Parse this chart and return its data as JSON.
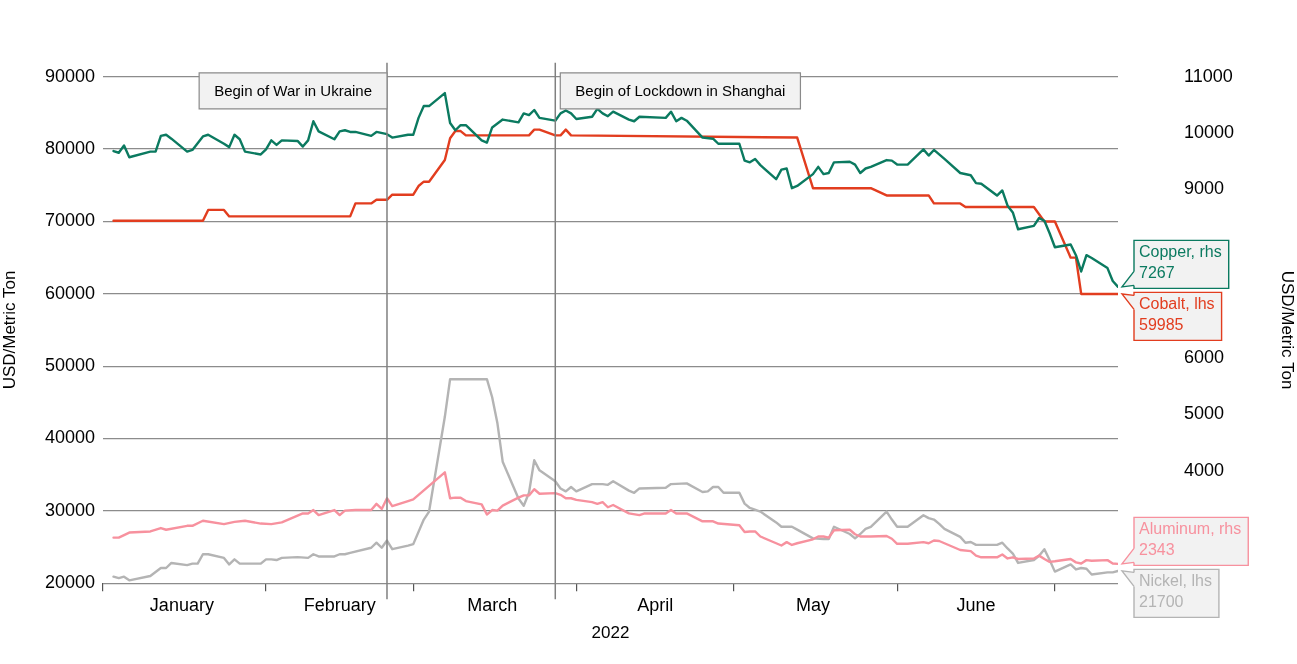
{
  "chart_data": {
    "type": "line",
    "xlabel": "2022",
    "ylabel": "USD/Metric Ton",
    "y2label": "USD/Metric Ton",
    "grid": "y",
    "xlim": [
      "2022-01-01",
      "2022-07-13"
    ],
    "xticks": [
      {
        "value": "2022-01-01",
        "label": null
      },
      {
        "value": "2022-01-16",
        "label": "January"
      },
      {
        "value": "2022-02-01",
        "label": null
      },
      {
        "value": "2022-02-15",
        "label": "February"
      },
      {
        "value": "2022-03-01",
        "label": null
      },
      {
        "value": "2022-03-16",
        "label": "March"
      },
      {
        "value": "2022-04-01",
        "label": null
      },
      {
        "value": "2022-04-16",
        "label": "April"
      },
      {
        "value": "2022-05-01",
        "label": null
      },
      {
        "value": "2022-05-16",
        "label": "May"
      },
      {
        "value": "2022-06-01",
        "label": null
      },
      {
        "value": "2022-06-16",
        "label": "June"
      },
      {
        "value": "2022-07-01",
        "label": null
      }
    ],
    "ylim": [
      20000,
      90000
    ],
    "yticks": [
      20000,
      30000,
      40000,
      50000,
      60000,
      70000,
      80000,
      90000
    ],
    "y2lim": [
      2000,
      11000
    ],
    "y2ticks": [
      4000,
      5000,
      6000,
      9000,
      10000,
      11000
    ],
    "legend": "right",
    "ref_lines": [
      {
        "axis": "x",
        "value": "2022-02-24",
        "label": "Begin of War in Ukraine",
        "color": "#808080"
      },
      {
        "axis": "x",
        "value": "2022-03-28",
        "label": "Begin of Lockdown in Shanghai",
        "color": "#808080"
      }
    ],
    "series": [
      {
        "name": "Copper, rhs",
        "color": "#0b7a60",
        "axis": "y2",
        "x": [
          "2022-01-03",
          "2022-01-04",
          "2022-01-05",
          "2022-01-06",
          "2022-01-10",
          "2022-01-11",
          "2022-01-12",
          "2022-01-13",
          "2022-01-14",
          "2022-01-17",
          "2022-01-18",
          "2022-01-20",
          "2022-01-21",
          "2022-01-24",
          "2022-01-25",
          "2022-01-26",
          "2022-01-27",
          "2022-01-28",
          "2022-01-31",
          "2022-02-01",
          "2022-02-02",
          "2022-02-03",
          "2022-02-04",
          "2022-02-07",
          "2022-02-08",
          "2022-02-09",
          "2022-02-10",
          "2022-02-11",
          "2022-02-14",
          "2022-02-15",
          "2022-02-16",
          "2022-02-17",
          "2022-02-18",
          "2022-02-21",
          "2022-02-22",
          "2022-02-24",
          "2022-02-25",
          "2022-02-28",
          "2022-03-01",
          "2022-03-02",
          "2022-03-03",
          "2022-03-04",
          "2022-03-07",
          "2022-03-08",
          "2022-03-09",
          "2022-03-10",
          "2022-03-11",
          "2022-03-14",
          "2022-03-15",
          "2022-03-16",
          "2022-03-18",
          "2022-03-21",
          "2022-03-22",
          "2022-03-23",
          "2022-03-24",
          "2022-03-25",
          "2022-03-28",
          "2022-03-29",
          "2022-03-30",
          "2022-03-31",
          "2022-04-01",
          "2022-04-04",
          "2022-04-05",
          "2022-04-06",
          "2022-04-07",
          "2022-04-08",
          "2022-04-11",
          "2022-04-12",
          "2022-04-13",
          "2022-04-18",
          "2022-04-19",
          "2022-04-20",
          "2022-04-21",
          "2022-04-22",
          "2022-04-25",
          "2022-04-27",
          "2022-04-28",
          "2022-05-02",
          "2022-05-03",
          "2022-05-04",
          "2022-05-05",
          "2022-05-06",
          "2022-05-09",
          "2022-05-10",
          "2022-05-11",
          "2022-05-12",
          "2022-05-13",
          "2022-05-16",
          "2022-05-17",
          "2022-05-18",
          "2022-05-19",
          "2022-05-20",
          "2022-05-23",
          "2022-05-24",
          "2022-05-25",
          "2022-05-26",
          "2022-05-27",
          "2022-05-30",
          "2022-05-31",
          "2022-06-01",
          "2022-06-03",
          "2022-06-06",
          "2022-06-07",
          "2022-06-08",
          "2022-06-09",
          "2022-06-10",
          "2022-06-13",
          "2022-06-15",
          "2022-06-16",
          "2022-06-17",
          "2022-06-20",
          "2022-06-21",
          "2022-06-22",
          "2022-06-23",
          "2022-06-24",
          "2022-06-27",
          "2022-06-28",
          "2022-06-29",
          "2022-06-30",
          "2022-07-01",
          "2022-07-04",
          "2022-07-05",
          "2022-07-06",
          "2022-07-07",
          "2022-07-08",
          "2022-07-11",
          "2022-07-12",
          "2022-07-13"
        ],
        "values": [
          9680,
          9650,
          9780,
          9570,
          9670,
          9670,
          9950,
          9970,
          9900,
          9670,
          9700,
          9940,
          9970,
          9810,
          9750,
          9970,
          9890,
          9670,
          9620,
          9710,
          9870,
          9790,
          9870,
          9860,
          9760,
          9870,
          10210,
          10030,
          9890,
          10030,
          10050,
          10020,
          10020,
          9950,
          10020,
          9980,
          9920,
          9970,
          9970,
          10270,
          10480,
          10480,
          10710,
          10180,
          10050,
          10140,
          10140,
          9870,
          9830,
          10100,
          10240,
          10190,
          10350,
          10320,
          10410,
          10270,
          10220,
          10350,
          10400,
          10350,
          10250,
          10290,
          10430,
          10350,
          10300,
          10380,
          10240,
          10210,
          10290,
          10270,
          10380,
          10210,
          10270,
          10220,
          9920,
          9900,
          9810,
          9810,
          9510,
          9480,
          9540,
          9430,
          9180,
          9350,
          9370,
          9020,
          9060,
          9270,
          9400,
          9270,
          9290,
          9480,
          9490,
          9440,
          9290,
          9370,
          9400,
          9520,
          9510,
          9440,
          9440,
          9710,
          9600,
          9700,
          9620,
          9540,
          9290,
          9250,
          9110,
          9100,
          8890,
          8980,
          8710,
          8590,
          8290,
          8350,
          8490,
          8440,
          8220,
          7970,
          8020,
          7830,
          7540,
          7830,
          7780,
          7600,
          7370,
          7267
        ],
        "value_labels": [
          null,
          null,
          null,
          null,
          null,
          null,
          null,
          null,
          null,
          null,
          null,
          null,
          null,
          null,
          null,
          null,
          null,
          null,
          null,
          null,
          null,
          null,
          null,
          null,
          null,
          null,
          null,
          null,
          null,
          null,
          null,
          null,
          null,
          null,
          null,
          null,
          null,
          null,
          null,
          null,
          null,
          null,
          null,
          null,
          null,
          null,
          null,
          null,
          null,
          null,
          null,
          null,
          null,
          null,
          null,
          null,
          null,
          null,
          null,
          null,
          null,
          null,
          null,
          null,
          null,
          null,
          null,
          null,
          null,
          null,
          null,
          null,
          null,
          null,
          null,
          null,
          null,
          null,
          null,
          null,
          null,
          null,
          null,
          null,
          null,
          null,
          null,
          null,
          null,
          null,
          null,
          null,
          null,
          null,
          null,
          null,
          null,
          null,
          null,
          null,
          null,
          null,
          null,
          null,
          null,
          null,
          null,
          null,
          null,
          null,
          null,
          null,
          null,
          null,
          null,
          null,
          null,
          null,
          null,
          null,
          null,
          null,
          null,
          null,
          null,
          null,
          null,
          "7267"
        ]
      },
      {
        "name": "Cobalt, lhs",
        "color": "#e23d1f",
        "x": [
          "2022-01-03",
          "2022-01-20",
          "2022-01-21",
          "2022-01-24",
          "2022-01-25",
          "2022-02-17",
          "2022-02-18",
          "2022-02-21",
          "2022-02-22",
          "2022-02-24",
          "2022-02-25",
          "2022-03-01",
          "2022-03-02",
          "2022-03-03",
          "2022-03-04",
          "2022-03-07",
          "2022-03-08",
          "2022-03-09",
          "2022-03-10",
          "2022-03-11",
          "2022-03-23",
          "2022-03-24",
          "2022-03-25",
          "2022-03-28",
          "2022-03-29",
          "2022-03-30",
          "2022-03-31",
          "2022-05-13",
          "2022-05-16",
          "2022-05-27",
          "2022-05-30",
          "2022-06-07",
          "2022-06-08",
          "2022-06-13",
          "2022-06-14",
          "2022-06-27",
          "2022-06-29",
          "2022-07-01",
          "2022-07-04",
          "2022-07-05",
          "2022-07-06",
          "2022-07-13"
        ],
        "values": [
          70100,
          70100,
          71600,
          71600,
          70700,
          70700,
          72500,
          72500,
          73000,
          73000,
          73700,
          73700,
          74900,
          75500,
          75500,
          78500,
          81500,
          82500,
          82500,
          81900,
          81900,
          82700,
          82700,
          81900,
          81900,
          82700,
          81900,
          81600,
          74600,
          74600,
          73600,
          73600,
          72500,
          72500,
          72000,
          72000,
          70000,
          70000,
          65000,
          65000,
          59985,
          59985
        ],
        "value_labels": [
          null,
          null,
          null,
          null,
          null,
          null,
          null,
          null,
          null,
          null,
          null,
          null,
          null,
          null,
          null,
          null,
          null,
          null,
          null,
          null,
          null,
          null,
          null,
          null,
          null,
          null,
          null,
          null,
          null,
          null,
          null,
          null,
          null,
          null,
          null,
          null,
          null,
          null,
          null,
          null,
          null,
          "59985"
        ]
      },
      {
        "name": "Aluminum, rhs",
        "color": "#f7919e",
        "axis": "y2",
        "x": [
          "2022-01-03",
          "2022-01-04",
          "2022-01-06",
          "2022-01-10",
          "2022-01-12",
          "2022-01-13",
          "2022-01-17",
          "2022-01-18",
          "2022-01-20",
          "2022-01-24",
          "2022-01-26",
          "2022-01-28",
          "2022-01-31",
          "2022-02-02",
          "2022-02-04",
          "2022-02-08",
          "2022-02-09",
          "2022-02-10",
          "2022-02-11",
          "2022-02-14",
          "2022-02-15",
          "2022-02-16",
          "2022-02-18",
          "2022-02-21",
          "2022-02-22",
          "2022-02-23",
          "2022-02-24",
          "2022-02-25",
          "2022-02-28",
          "2022-03-01",
          "2022-03-07",
          "2022-03-08",
          "2022-03-09",
          "2022-03-10",
          "2022-03-11",
          "2022-03-14",
          "2022-03-15",
          "2022-03-16",
          "2022-03-17",
          "2022-03-18",
          "2022-03-21",
          "2022-03-22",
          "2022-03-23",
          "2022-03-24",
          "2022-03-25",
          "2022-03-28",
          "2022-03-29",
          "2022-03-30",
          "2022-03-31",
          "2022-04-01",
          "2022-04-04",
          "2022-04-05",
          "2022-04-06",
          "2022-04-07",
          "2022-04-08",
          "2022-04-11",
          "2022-04-13",
          "2022-04-14",
          "2022-04-18",
          "2022-04-19",
          "2022-04-20",
          "2022-04-22",
          "2022-04-25",
          "2022-04-27",
          "2022-04-28",
          "2022-05-02",
          "2022-05-03",
          "2022-05-04",
          "2022-05-05",
          "2022-05-06",
          "2022-05-09",
          "2022-05-10",
          "2022-05-11",
          "2022-05-12",
          "2022-05-13",
          "2022-05-16",
          "2022-05-17",
          "2022-05-18",
          "2022-05-19",
          "2022-05-20",
          "2022-05-23",
          "2022-05-24",
          "2022-05-25",
          "2022-05-27",
          "2022-05-30",
          "2022-05-31",
          "2022-06-01",
          "2022-06-03",
          "2022-06-06",
          "2022-06-07",
          "2022-06-08",
          "2022-06-09",
          "2022-06-10",
          "2022-06-13",
          "2022-06-15",
          "2022-06-16",
          "2022-06-17",
          "2022-06-20",
          "2022-06-21",
          "2022-06-22",
          "2022-06-23",
          "2022-06-24",
          "2022-06-27",
          "2022-06-28",
          "2022-06-29",
          "2022-06-30",
          "2022-07-01",
          "2022-07-04",
          "2022-07-05",
          "2022-07-06",
          "2022-07-07",
          "2022-07-08",
          "2022-07-11",
          "2022-07-12",
          "2022-07-13"
        ],
        "values": [
          2810,
          2810,
          2900,
          2920,
          2980,
          2950,
          3020,
          3020,
          3110,
          3050,
          3090,
          3110,
          3060,
          3050,
          3080,
          3240,
          3240,
          3300,
          3210,
          3300,
          3210,
          3290,
          3300,
          3300,
          3410,
          3320,
          3510,
          3370,
          3460,
          3490,
          3970,
          3510,
          3520,
          3520,
          3460,
          3400,
          3220,
          3300,
          3290,
          3380,
          3520,
          3560,
          3560,
          3670,
          3590,
          3600,
          3570,
          3510,
          3510,
          3480,
          3440,
          3410,
          3440,
          3350,
          3390,
          3240,
          3210,
          3240,
          3240,
          3300,
          3240,
          3240,
          3100,
          3100,
          3060,
          3030,
          2910,
          2920,
          2920,
          2830,
          2710,
          2670,
          2730,
          2680,
          2710,
          2780,
          2830,
          2830,
          2810,
          2940,
          2950,
          2870,
          2830,
          2830,
          2840,
          2790,
          2700,
          2700,
          2730,
          2710,
          2760,
          2750,
          2710,
          2590,
          2570,
          2490,
          2460,
          2460,
          2510,
          2440,
          2460,
          2430,
          2440,
          2490,
          2430,
          2380,
          2390,
          2430,
          2370,
          2350,
          2410,
          2400,
          2410,
          2350,
          2343
        ],
        "value_labels": [
          null,
          null,
          null,
          null,
          null,
          null,
          null,
          null,
          null,
          null,
          null,
          null,
          null,
          null,
          null,
          null,
          null,
          null,
          null,
          null,
          null,
          null,
          null,
          null,
          null,
          null,
          null,
          null,
          null,
          null,
          null,
          null,
          null,
          null,
          null,
          null,
          null,
          null,
          null,
          null,
          null,
          null,
          null,
          null,
          null,
          null,
          null,
          null,
          null,
          null,
          null,
          null,
          null,
          null,
          null,
          null,
          null,
          null,
          null,
          null,
          null,
          null,
          null,
          null,
          null,
          null,
          null,
          null,
          null,
          null,
          null,
          null,
          null,
          null,
          null,
          null,
          null,
          null,
          null,
          null,
          null,
          null,
          null,
          null,
          null,
          null,
          null,
          null,
          null,
          null,
          null,
          null,
          null,
          null,
          null,
          null,
          null,
          null,
          null,
          null,
          null,
          null,
          null,
          null,
          null,
          null,
          null,
          null,
          null,
          null,
          null,
          null,
          null,
          null,
          "2343"
        ]
      },
      {
        "name": "Nickel, lhs",
        "color": "#b4b4b4",
        "x": [
          "2022-01-03",
          "2022-01-04",
          "2022-01-05",
          "2022-01-06",
          "2022-01-10",
          "2022-01-12",
          "2022-01-13",
          "2022-01-14",
          "2022-01-17",
          "2022-01-18",
          "2022-01-19",
          "2022-01-20",
          "2022-01-21",
          "2022-01-24",
          "2022-01-25",
          "2022-01-26",
          "2022-01-27",
          "2022-01-28",
          "2022-01-31",
          "2022-02-01",
          "2022-02-02",
          "2022-02-03",
          "2022-02-04",
          "2022-02-07",
          "2022-02-09",
          "2022-02-10",
          "2022-02-11",
          "2022-02-14",
          "2022-02-15",
          "2022-02-16",
          "2022-02-17",
          "2022-02-21",
          "2022-02-22",
          "2022-02-23",
          "2022-02-24",
          "2022-02-25",
          "2022-02-28",
          "2022-03-01",
          "2022-03-03",
          "2022-03-04",
          "2022-03-07",
          "2022-03-08",
          "2022-03-15",
          "2022-03-16",
          "2022-03-17",
          "2022-03-18",
          "2022-03-21",
          "2022-03-22",
          "2022-03-23",
          "2022-03-24",
          "2022-03-25",
          "2022-03-28",
          "2022-03-29",
          "2022-03-30",
          "2022-03-31",
          "2022-04-01",
          "2022-04-04",
          "2022-04-06",
          "2022-04-07",
          "2022-04-08",
          "2022-04-11",
          "2022-04-12",
          "2022-04-13",
          "2022-04-18",
          "2022-04-19",
          "2022-04-22",
          "2022-04-25",
          "2022-04-26",
          "2022-04-27",
          "2022-04-28",
          "2022-04-29",
          "2022-05-02",
          "2022-05-03",
          "2022-05-04",
          "2022-05-06",
          "2022-05-09",
          "2022-05-10",
          "2022-05-12",
          "2022-05-13",
          "2022-05-16",
          "2022-05-18",
          "2022-05-19",
          "2022-05-20",
          "2022-05-23",
          "2022-05-24",
          "2022-05-25",
          "2022-05-26",
          "2022-05-27",
          "2022-05-30",
          "2022-05-31",
          "2022-06-01",
          "2022-06-03",
          "2022-06-06",
          "2022-06-07",
          "2022-06-08",
          "2022-06-09",
          "2022-06-10",
          "2022-06-13",
          "2022-06-14",
          "2022-06-15",
          "2022-06-16",
          "2022-06-20",
          "2022-06-21",
          "2022-06-22",
          "2022-06-23",
          "2022-06-24",
          "2022-06-27",
          "2022-06-28",
          "2022-06-29",
          "2022-06-30",
          "2022-07-01",
          "2022-07-04",
          "2022-07-05",
          "2022-07-06",
          "2022-07-07",
          "2022-07-08",
          "2022-07-11",
          "2022-07-12",
          "2022-07-13"
        ],
        "values": [
          20900,
          20700,
          20900,
          20400,
          21000,
          22100,
          22100,
          22800,
          22500,
          22700,
          22700,
          24000,
          24000,
          23500,
          22600,
          23300,
          22700,
          22700,
          22700,
          23300,
          23300,
          23200,
          23500,
          23600,
          23500,
          24000,
          23700,
          23700,
          24000,
          24000,
          24200,
          24900,
          25600,
          24900,
          25900,
          24700,
          25200,
          25400,
          28800,
          29900,
          43000,
          48200,
          48200,
          45700,
          42100,
          36800,
          31700,
          30700,
          32500,
          37000,
          35600,
          34100,
          33100,
          32700,
          33300,
          32700,
          33700,
          33700,
          33600,
          34100,
          32800,
          32500,
          33100,
          33200,
          33700,
          33800,
          32600,
          32700,
          33300,
          33300,
          32500,
          32500,
          31000,
          30400,
          29900,
          28400,
          27800,
          27800,
          27400,
          26200,
          26100,
          26100,
          27800,
          26800,
          26200,
          26800,
          27500,
          27800,
          29900,
          28800,
          27800,
          27800,
          29400,
          29000,
          28800,
          28200,
          27500,
          26400,
          25600,
          25700,
          25300,
          25300,
          25600,
          24800,
          24100,
          22800,
          23200,
          23800,
          24700,
          23200,
          21600,
          22600,
          21900,
          22100,
          22000,
          21200,
          21500,
          21500,
          21700
        ],
        "value_labels": [
          null,
          null,
          null,
          null,
          null,
          null,
          null,
          null,
          null,
          null,
          null,
          null,
          null,
          null,
          null,
          null,
          null,
          null,
          null,
          null,
          null,
          null,
          null,
          null,
          null,
          null,
          null,
          null,
          null,
          null,
          null,
          null,
          null,
          null,
          null,
          null,
          null,
          null,
          null,
          null,
          null,
          null,
          null,
          null,
          null,
          null,
          null,
          null,
          null,
          null,
          null,
          null,
          null,
          null,
          null,
          null,
          null,
          null,
          null,
          null,
          null,
          null,
          null,
          null,
          null,
          null,
          null,
          null,
          null,
          null,
          null,
          null,
          null,
          null,
          null,
          null,
          null,
          null,
          null,
          null,
          null,
          null,
          null,
          null,
          null,
          null,
          null,
          null,
          null,
          null,
          null,
          null,
          null,
          null,
          null,
          null,
          null,
          null,
          null,
          null,
          null,
          null,
          null,
          null,
          null,
          null,
          null,
          null,
          null,
          null,
          null,
          null,
          null,
          null,
          null,
          null,
          null,
          null,
          "21700"
        ]
      }
    ]
  }
}
